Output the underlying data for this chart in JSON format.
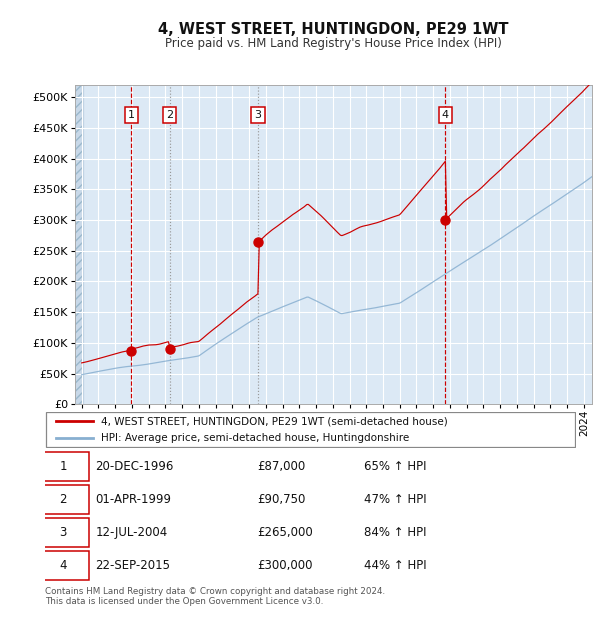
{
  "title": "4, WEST STREET, HUNTINGDON, PE29 1WT",
  "subtitle": "Price paid vs. HM Land Registry's House Price Index (HPI)",
  "legend_red": "4, WEST STREET, HUNTINGDON, PE29 1WT (semi-detached house)",
  "legend_blue": "HPI: Average price, semi-detached house, Huntingdonshire",
  "footer1": "Contains HM Land Registry data © Crown copyright and database right 2024.",
  "footer2": "This data is licensed under the Open Government Licence v3.0.",
  "purchases": [
    {
      "num": 1,
      "date_f": 1996.96,
      "price": 87000,
      "label": "20-DEC-1996",
      "pct": "65% ↑ HPI"
    },
    {
      "num": 2,
      "date_f": 1999.25,
      "price": 90750,
      "label": "01-APR-1999",
      "pct": "47% ↑ HPI"
    },
    {
      "num": 3,
      "date_f": 2004.53,
      "price": 265000,
      "label": "12-JUL-2004",
      "pct": "84% ↑ HPI"
    },
    {
      "num": 4,
      "date_f": 2015.73,
      "price": 300000,
      "label": "22-SEP-2015",
      "pct": "44% ↑ HPI"
    }
  ],
  "ylim": [
    0,
    520000
  ],
  "xlim_start": 1993.6,
  "xlim_end": 2024.5,
  "bg_color": "#dce9f5",
  "grid_color": "#ffffff",
  "red_color": "#cc0000",
  "blue_color": "#88afd0",
  "table_rows": [
    [
      "1",
      "20-DEC-1996",
      "£87,000",
      "65% ↑ HPI"
    ],
    [
      "2",
      "01-APR-1999",
      "£90,750",
      "47% ↑ HPI"
    ],
    [
      "3",
      "12-JUL-2004",
      "£265,000",
      "84% ↑ HPI"
    ],
    [
      "4",
      "22-SEP-2015",
      "£300,000",
      "44% ↑ HPI"
    ]
  ]
}
